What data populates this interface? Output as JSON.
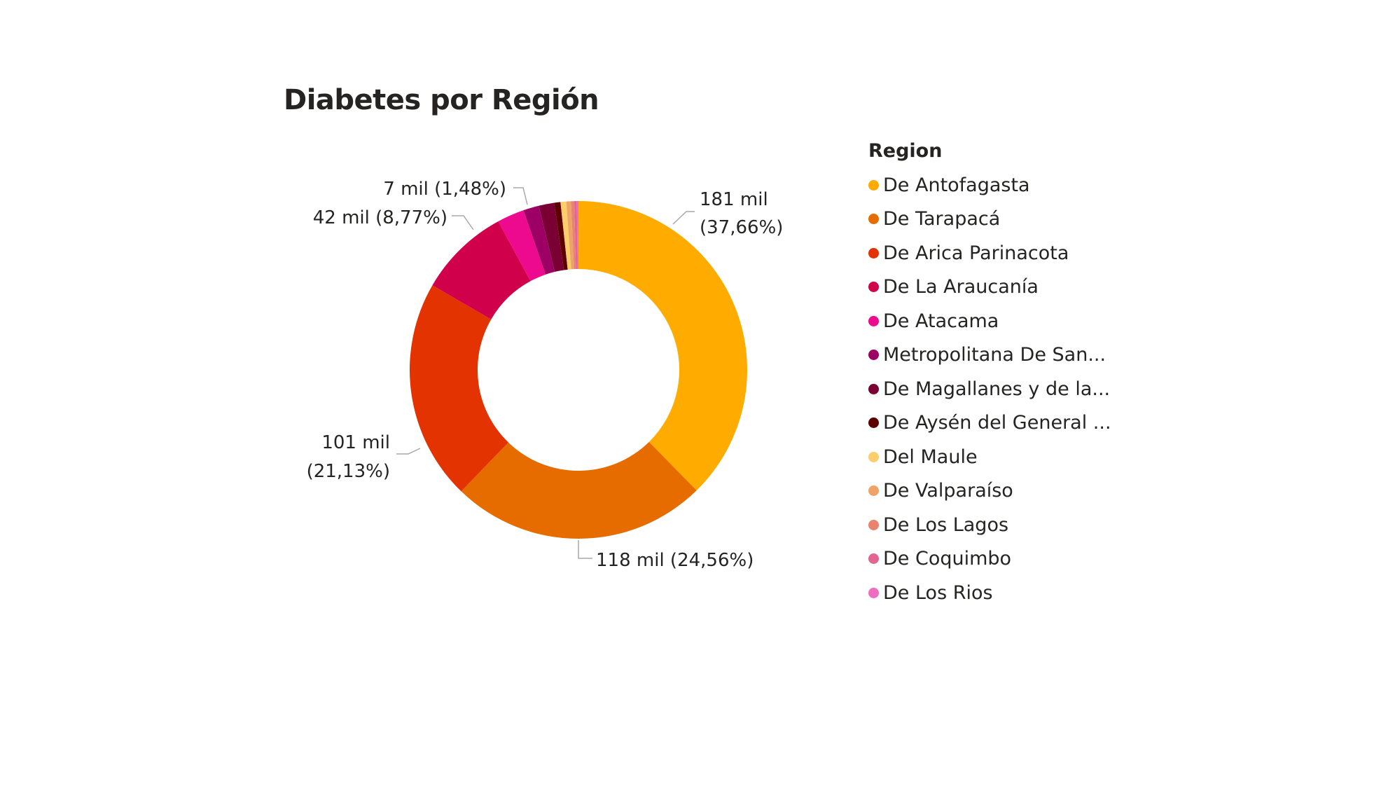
{
  "chart_data": {
    "type": "pie",
    "title": "Diabetes por Región",
    "legend_title": "Region",
    "legend_position": "right",
    "series": [
      {
        "name": "De Antofagasta",
        "percent": 37.66,
        "color": "#FFAB00",
        "label": "181 mil (37,66%)"
      },
      {
        "name": "De Tarapacá",
        "percent": 24.56,
        "color": "#E66C00",
        "label": "118 mil (24,56%)"
      },
      {
        "name": "De Arica Parinacota",
        "percent": 21.13,
        "color": "#E23300",
        "label": "101 mil (21,13%)"
      },
      {
        "name": "De La Araucanía",
        "percent": 8.77,
        "color": "#D1004B",
        "label": "42 mil (8,77%)"
      },
      {
        "name": "De Atacama",
        "percent": 2.6,
        "color": "#EE0A8F",
        "label": ""
      },
      {
        "name": "Metropolitana De San...",
        "percent": 1.5,
        "color": "#9C0064",
        "label": ""
      },
      {
        "name": "De Magallanes y de la...",
        "percent": 1.48,
        "color": "#7A0033",
        "label": "7 mil (1,48%)"
      },
      {
        "name": "De Aysén del General ...",
        "percent": 0.6,
        "color": "#5C0000",
        "label": ""
      },
      {
        "name": "Del Maule",
        "percent": 0.55,
        "color": "#FECD6C",
        "label": ""
      },
      {
        "name": "De Valparaíso",
        "percent": 0.45,
        "color": "#EEA468",
        "label": ""
      },
      {
        "name": "De Los Lagos",
        "percent": 0.3,
        "color": "#E98370",
        "label": ""
      },
      {
        "name": "De Coquimbo",
        "percent": 0.25,
        "color": "#E06792",
        "label": ""
      },
      {
        "name": "De Los Rios",
        "percent": 0.15,
        "color": "#F06CBF",
        "label": ""
      }
    ]
  }
}
